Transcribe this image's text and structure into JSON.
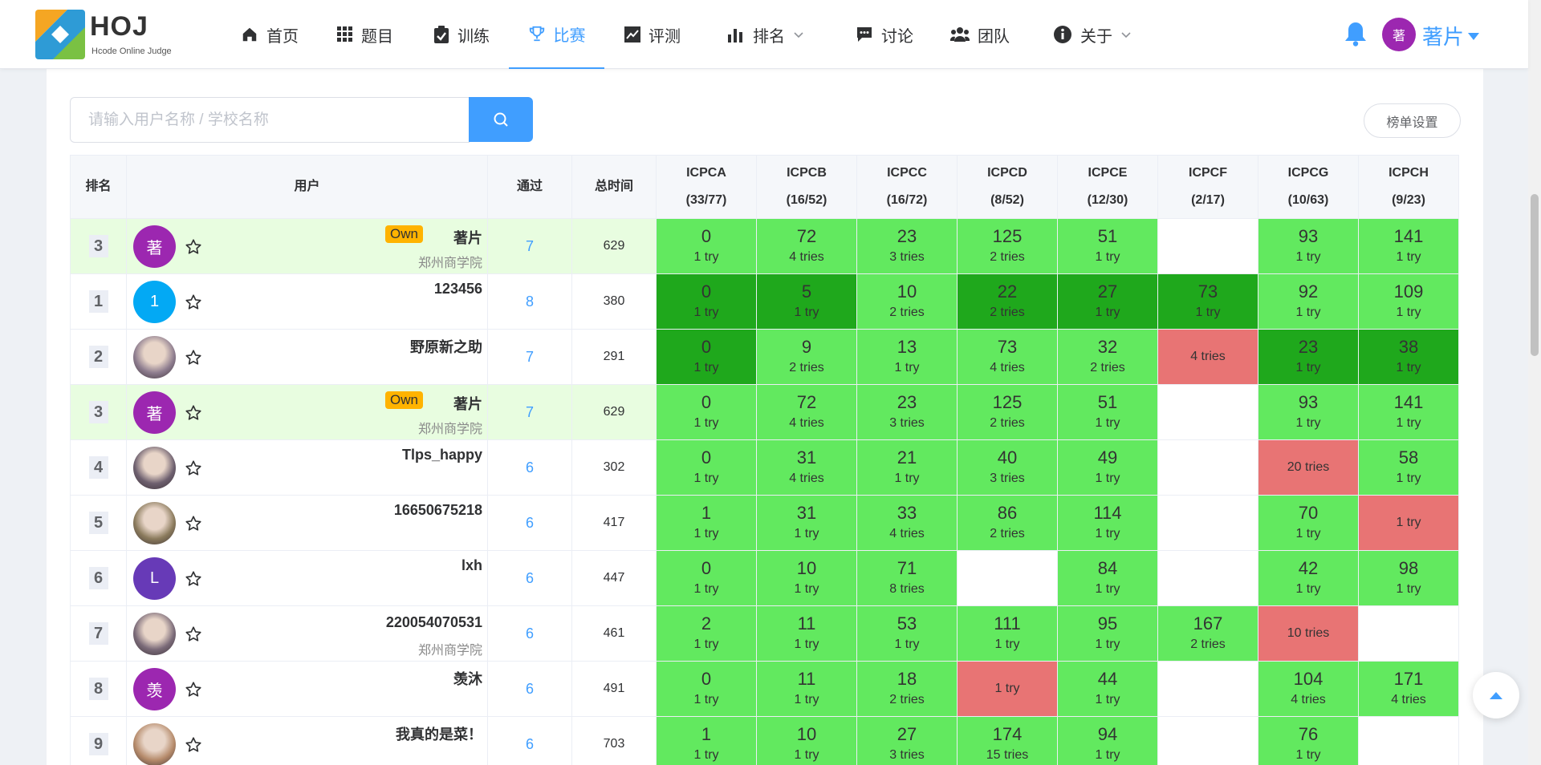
{
  "logo": {
    "title": "HOJ",
    "subtitle": "Hcode Online Judge"
  },
  "nav": [
    {
      "label": "首页",
      "icon": "home-icon"
    },
    {
      "label": "题目",
      "icon": "grid-icon"
    },
    {
      "label": "训练",
      "icon": "clipboard-check-icon"
    },
    {
      "label": "比赛",
      "icon": "trophy-icon",
      "active": true
    },
    {
      "label": "评测",
      "icon": "line-chart-icon"
    },
    {
      "label": "排名",
      "icon": "bar-chart-icon",
      "dropdown": true
    },
    {
      "label": "讨论",
      "icon": "chat-icon"
    },
    {
      "label": "团队",
      "icon": "users-icon"
    },
    {
      "label": "关于",
      "icon": "info-icon",
      "dropdown": true
    }
  ],
  "user": {
    "avatar_text": "著",
    "name": "著片"
  },
  "search": {
    "placeholder": "请输入用户名称 / 学校名称"
  },
  "settings_label": "榜单设置",
  "colors": {
    "first_blood": "#1fa81c",
    "accepted": "#62e95f",
    "wrong": "#e87474",
    "own_row": "#e8fde0",
    "accent": "#409eff"
  },
  "table": {
    "headers": {
      "rank": "排名",
      "user": "用户",
      "ac": "通过",
      "time": "总时间"
    },
    "problems": [
      {
        "name": "ICPCA",
        "stat": "(33/77)"
      },
      {
        "name": "ICPCB",
        "stat": "(16/52)"
      },
      {
        "name": "ICPCC",
        "stat": "(16/72)"
      },
      {
        "name": "ICPCD",
        "stat": "(8/52)"
      },
      {
        "name": "ICPCE",
        "stat": "(12/30)"
      },
      {
        "name": "ICPCF",
        "stat": "(2/17)"
      },
      {
        "name": "ICPCG",
        "stat": "(10/63)"
      },
      {
        "name": "ICPCH",
        "stat": "(9/23)"
      }
    ],
    "rows": [
      {
        "rank": "3",
        "name": "著片",
        "school": "郑州商学院",
        "own": true,
        "own_label": "Own",
        "avatar": "著",
        "avatar_color": "#9c27b0",
        "ac": "7",
        "time": "629",
        "cells": [
          [
            "ac",
            "0",
            "1 try"
          ],
          [
            "ac",
            "72",
            "4 tries"
          ],
          [
            "ac",
            "23",
            "3 tries"
          ],
          [
            "ac",
            "125",
            "2 tries"
          ],
          [
            "ac",
            "51",
            "1 try"
          ],
          [
            "em",
            "",
            ""
          ],
          [
            "ac",
            "93",
            "1 try"
          ],
          [
            "ac",
            "141",
            "1 try"
          ]
        ]
      },
      {
        "rank": "1",
        "name": "123456",
        "school": "",
        "avatar": "1",
        "avatar_color": "#03a9f4",
        "ac": "8",
        "time": "380",
        "cells": [
          [
            "fb",
            "0",
            "1 try"
          ],
          [
            "fb",
            "5",
            "1 try"
          ],
          [
            "ac",
            "10",
            "2 tries"
          ],
          [
            "fb",
            "22",
            "2 tries"
          ],
          [
            "fb",
            "27",
            "1 try"
          ],
          [
            "fb",
            "73",
            "1 try"
          ],
          [
            "ac",
            "92",
            "1 try"
          ],
          [
            "ac",
            "109",
            "1 try"
          ]
        ]
      },
      {
        "rank": "2",
        "name": "野原新之助",
        "school": "",
        "avatar": "",
        "avatar_color": "#8d7c8e",
        "photo": true,
        "ac": "7",
        "time": "291",
        "cells": [
          [
            "fb",
            "0",
            "1 try"
          ],
          [
            "ac",
            "9",
            "2 tries"
          ],
          [
            "ac",
            "13",
            "1 try"
          ],
          [
            "ac",
            "73",
            "4 tries"
          ],
          [
            "ac",
            "32",
            "2 tries"
          ],
          [
            "wa",
            "",
            "4 tries"
          ],
          [
            "fb",
            "23",
            "1 try"
          ],
          [
            "fb",
            "38",
            "1 try"
          ]
        ]
      },
      {
        "rank": "3",
        "name": "著片",
        "school": "郑州商学院",
        "own": true,
        "own_label": "Own",
        "avatar": "著",
        "avatar_color": "#9c27b0",
        "ac": "7",
        "time": "629",
        "cells": [
          [
            "ac",
            "0",
            "1 try"
          ],
          [
            "ac",
            "72",
            "4 tries"
          ],
          [
            "ac",
            "23",
            "3 tries"
          ],
          [
            "ac",
            "125",
            "2 tries"
          ],
          [
            "ac",
            "51",
            "1 try"
          ],
          [
            "em",
            "",
            ""
          ],
          [
            "ac",
            "93",
            "1 try"
          ],
          [
            "ac",
            "141",
            "1 try"
          ]
        ]
      },
      {
        "rank": "4",
        "name": "Tlps_happy",
        "school": "",
        "avatar": "",
        "avatar_color": "#6d5f6e",
        "photo": true,
        "ac": "6",
        "time": "302",
        "cells": [
          [
            "ac",
            "0",
            "1 try"
          ],
          [
            "ac",
            "31",
            "4 tries"
          ],
          [
            "ac",
            "21",
            "1 try"
          ],
          [
            "ac",
            "40",
            "3 tries"
          ],
          [
            "ac",
            "49",
            "1 try"
          ],
          [
            "em",
            "",
            ""
          ],
          [
            "wa",
            "",
            "20 tries"
          ],
          [
            "ac",
            "58",
            "1 try"
          ]
        ]
      },
      {
        "rank": "5",
        "name": "16650675218",
        "school": "",
        "avatar": "",
        "avatar_color": "#8a7a5c",
        "photo": true,
        "ac": "6",
        "time": "417",
        "cells": [
          [
            "ac",
            "1",
            "1 try"
          ],
          [
            "ac",
            "31",
            "1 try"
          ],
          [
            "ac",
            "33",
            "4 tries"
          ],
          [
            "ac",
            "86",
            "2 tries"
          ],
          [
            "ac",
            "114",
            "1 try"
          ],
          [
            "em",
            "",
            ""
          ],
          [
            "ac",
            "70",
            "1 try"
          ],
          [
            "wa",
            "",
            "1 try"
          ]
        ]
      },
      {
        "rank": "6",
        "name": "lxh",
        "school": "",
        "avatar": "L",
        "avatar_color": "#673ab7",
        "ac": "6",
        "time": "447",
        "cells": [
          [
            "ac",
            "0",
            "1 try"
          ],
          [
            "ac",
            "10",
            "1 try"
          ],
          [
            "ac",
            "71",
            "8 tries"
          ],
          [
            "em",
            "",
            ""
          ],
          [
            "ac",
            "84",
            "1 try"
          ],
          [
            "em",
            "",
            ""
          ],
          [
            "ac",
            "42",
            "1 try"
          ],
          [
            "ac",
            "98",
            "1 try"
          ]
        ]
      },
      {
        "rank": "7",
        "name": "220054070531",
        "school": "郑州商学院",
        "avatar": "",
        "avatar_color": "#7a6a78",
        "photo": true,
        "ac": "6",
        "time": "461",
        "cells": [
          [
            "ac",
            "2",
            "1 try"
          ],
          [
            "ac",
            "11",
            "1 try"
          ],
          [
            "ac",
            "53",
            "1 try"
          ],
          [
            "ac",
            "111",
            "1 try"
          ],
          [
            "ac",
            "95",
            "1 try"
          ],
          [
            "ac",
            "167",
            "2 tries"
          ],
          [
            "wa",
            "",
            "10 tries"
          ],
          [
            "em",
            "",
            ""
          ]
        ]
      },
      {
        "rank": "8",
        "name": "羡沐",
        "school": "",
        "avatar": "羡",
        "avatar_color": "#9c27b0",
        "ac": "6",
        "time": "491",
        "cells": [
          [
            "ac",
            "0",
            "1 try"
          ],
          [
            "ac",
            "11",
            "1 try"
          ],
          [
            "ac",
            "18",
            "2 tries"
          ],
          [
            "wa",
            "",
            "1 try"
          ],
          [
            "ac",
            "44",
            "1 try"
          ],
          [
            "em",
            "",
            ""
          ],
          [
            "ac",
            "104",
            "4 tries"
          ],
          [
            "ac",
            "171",
            "4 tries"
          ]
        ]
      },
      {
        "rank": "9",
        "name": "我真的是菜！",
        "school": "",
        "avatar": "",
        "avatar_color": "#b58a6a",
        "photo": true,
        "ac": "6",
        "time": "703",
        "cells": [
          [
            "ac",
            "1",
            "1 try"
          ],
          [
            "ac",
            "10",
            "1 try"
          ],
          [
            "ac",
            "27",
            "3 tries"
          ],
          [
            "ac",
            "174",
            "15 tries"
          ],
          [
            "ac",
            "94",
            "1 try"
          ],
          [
            "em",
            "",
            ""
          ],
          [
            "ac",
            "76",
            "1 try"
          ],
          [
            "em",
            "",
            ""
          ]
        ]
      }
    ]
  }
}
